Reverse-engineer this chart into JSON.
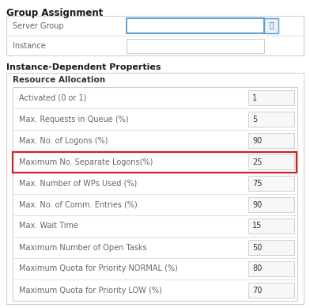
{
  "group_assignment_title": "Group Assignment",
  "group_fields": [
    {
      "label": "Server Group",
      "value": ""
    },
    {
      "label": "Instance",
      "value": ""
    }
  ],
  "instance_section_title": "Instance-Dependent Properties",
  "resource_title": "Resource Allocation",
  "rows": [
    {
      "label": "Activated (0 or 1)",
      "value": "1",
      "highlight": false
    },
    {
      "label": "Max. Requests in Queue (%)",
      "value": "5",
      "highlight": false
    },
    {
      "label": "Max. No. of Logons (%)",
      "value": "90",
      "highlight": false
    },
    {
      "label": "Maximum No. Separate Logons(%)",
      "value": "25",
      "highlight": true
    },
    {
      "label": "Max. Number of WPs Used (%)",
      "value": "75",
      "highlight": false
    },
    {
      "label": "Max. No. of Comm. Entries (%)",
      "value": "90",
      "highlight": false
    },
    {
      "label": "Max. Wait Time",
      "value": "15",
      "highlight": false
    },
    {
      "label": "Maximum Number of Open Tasks",
      "value": "50",
      "highlight": false
    },
    {
      "label": "Maximum Quota for Priority NORMAL (%)",
      "value": "80",
      "highlight": false
    },
    {
      "label": "Maximum Quota for Priority LOW (%)",
      "value": "70",
      "highlight": false
    }
  ],
  "bg_color": "#ffffff",
  "border_color": "#d0d0d0",
  "highlight_border": "#cc2222",
  "label_color": "#666666",
  "title_color": "#333333",
  "bold_title_color": "#1a1a1a",
  "input_bg": "#f7f7f7",
  "input_border": "#c8c8c8",
  "server_group_border": "#5a9fd4",
  "icon_border": "#5a9fd4",
  "icon_bg": "#e8f0f8",
  "separator_color": "#e0e0e0",
  "title_fs": 8.5,
  "label_fs": 7.0,
  "value_fs": 7.0,
  "section_title_fs": 8.0,
  "resource_title_fs": 7.5
}
